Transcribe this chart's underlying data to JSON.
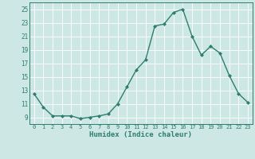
{
  "x": [
    0,
    1,
    2,
    3,
    4,
    5,
    6,
    7,
    8,
    9,
    10,
    11,
    12,
    13,
    14,
    15,
    16,
    17,
    18,
    19,
    20,
    21,
    22,
    23
  ],
  "y": [
    12.5,
    10.5,
    9.2,
    9.2,
    9.2,
    8.8,
    9.0,
    9.2,
    9.5,
    11.0,
    13.5,
    16.0,
    17.5,
    22.5,
    22.8,
    24.5,
    25.0,
    21.0,
    18.2,
    19.5,
    18.5,
    15.2,
    12.5,
    11.2
  ],
  "xlim": [
    -0.5,
    23.5
  ],
  "ylim": [
    8.0,
    26.0
  ],
  "yticks": [
    9,
    11,
    13,
    15,
    17,
    19,
    21,
    23,
    25
  ],
  "xtick_labels": [
    "0",
    "1",
    "2",
    "3",
    "4",
    "5",
    "6",
    "7",
    "8",
    "9",
    "10",
    "11",
    "12",
    "13",
    "14",
    "15",
    "16",
    "17",
    "18",
    "19",
    "20",
    "21",
    "22",
    "23"
  ],
  "xlabel": "Humidex (Indice chaleur)",
  "line_color": "#2e7d6e",
  "marker": "D",
  "marker_size": 2.0,
  "bg_color": "#cde8e4",
  "grid_color": "#ffffff",
  "fig_bg": "#cde8e4",
  "xlabel_fontsize": 6.5,
  "xtick_fontsize": 5.0,
  "ytick_fontsize": 5.5,
  "linewidth": 1.0
}
